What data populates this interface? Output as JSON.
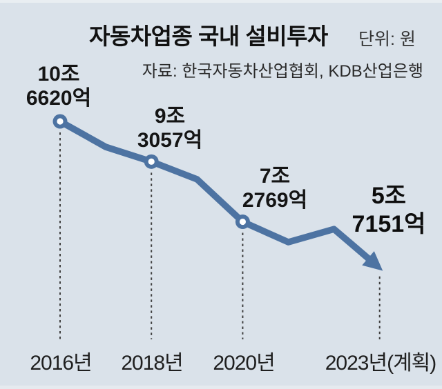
{
  "title": "자동차업종 국내 설비투자",
  "unit_label": "단위: 원",
  "source_label": "자료: 한국자동차산업협회, KDB산업은행",
  "colors": {
    "line": "#4d73a2",
    "marker_ring": "#4d73a2",
    "marker_center": "#ffffff",
    "background": "#dae2ea",
    "dashed_guide": "#3f3f3f",
    "text": "#111111"
  },
  "chart_data": {
    "type": "line",
    "title": "자동차업종 국내 설비투자",
    "unit": "원",
    "source": "한국자동차산업협회, KDB산업은행",
    "x_years": [
      2016,
      2017,
      2018,
      2019,
      2020,
      2021,
      2022,
      2023
    ],
    "values_trillion_krw": [
      10.662,
      9.8,
      9.3057,
      8.71,
      7.2769,
      6.59,
      7.03,
      5.7151
    ],
    "labeled_indices": [
      0,
      2,
      4,
      7
    ],
    "estimated_indices": [
      1,
      3,
      5,
      6
    ],
    "x_tick_labels": [
      "2016년",
      "2018년",
      "2020년",
      "2023년(계획)"
    ],
    "ylim": [
      5.0,
      11.0
    ],
    "grid": false,
    "legend": null,
    "last_point_style": "arrow"
  },
  "point_labels": [
    {
      "line1": "10조",
      "line2": "6620억"
    },
    {
      "line1": "9조",
      "line2": "3057억"
    },
    {
      "line1": "7조",
      "line2": "2769억"
    },
    {
      "line1": "5조",
      "line2": "7151억"
    }
  ],
  "x_axis_labels": [
    "2016년",
    "2018년",
    "2020년",
    "2023년(계획)"
  ]
}
